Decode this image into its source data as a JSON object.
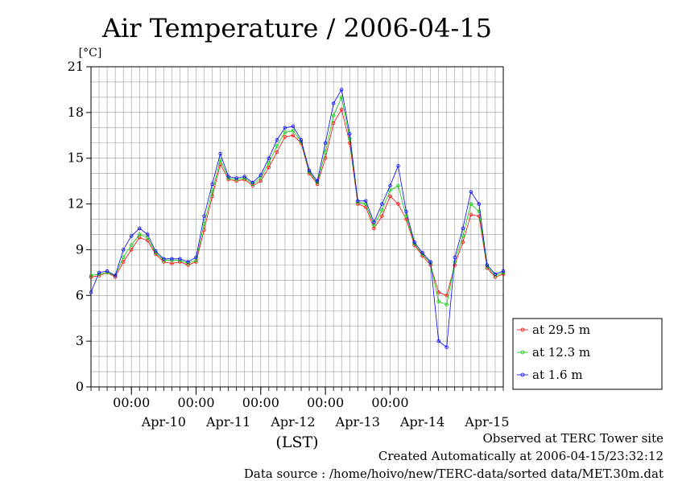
{
  "chart_data": {
    "type": "line",
    "title": "Air Temperature / 2006-04-15",
    "yunit": "[°C]",
    "xlabel": "(LST)",
    "ylim": [
      0,
      21
    ],
    "yticks": [
      0,
      3,
      6,
      9,
      12,
      15,
      18,
      21
    ],
    "xlim": [
      "2006-04-09 09:00",
      "2006-04-15 18:00"
    ],
    "x_time_ticks": [
      {
        "x": "2006-04-10 00:00",
        "label": "00:00"
      },
      {
        "x": "2006-04-11 00:00",
        "label": "00:00"
      },
      {
        "x": "2006-04-12 00:00",
        "label": "00:00"
      },
      {
        "x": "2006-04-13 00:00",
        "label": "00:00"
      },
      {
        "x": "2006-04-14 00:00",
        "label": "00:00"
      }
    ],
    "x_date_ticks": [
      {
        "x": "2006-04-10 12:00",
        "label": "Apr-10"
      },
      {
        "x": "2006-04-11 12:00",
        "label": "Apr-11"
      },
      {
        "x": "2006-04-12 12:00",
        "label": "Apr-12"
      },
      {
        "x": "2006-04-13 12:00",
        "label": "Apr-13"
      },
      {
        "x": "2006-04-14 12:00",
        "label": "Apr-14"
      },
      {
        "x": "2006-04-15 12:00",
        "label": "Apr-15"
      }
    ],
    "grid": true,
    "legend_position": "bottom-right outside plot",
    "x": [
      "2006-04-09 09:00",
      "2006-04-09 12:00",
      "2006-04-09 15:00",
      "2006-04-09 18:00",
      "2006-04-09 21:00",
      "2006-04-10 00:00",
      "2006-04-10 03:00",
      "2006-04-10 06:00",
      "2006-04-10 09:00",
      "2006-04-10 12:00",
      "2006-04-10 15:00",
      "2006-04-10 18:00",
      "2006-04-10 21:00",
      "2006-04-11 00:00",
      "2006-04-11 03:00",
      "2006-04-11 06:00",
      "2006-04-11 09:00",
      "2006-04-11 12:00",
      "2006-04-11 15:00",
      "2006-04-11 18:00",
      "2006-04-11 21:00",
      "2006-04-12 00:00",
      "2006-04-12 03:00",
      "2006-04-12 06:00",
      "2006-04-12 09:00",
      "2006-04-12 12:00",
      "2006-04-12 15:00",
      "2006-04-12 18:00",
      "2006-04-12 21:00",
      "2006-04-13 00:00",
      "2006-04-13 03:00",
      "2006-04-13 06:00",
      "2006-04-13 09:00",
      "2006-04-13 12:00",
      "2006-04-13 15:00",
      "2006-04-13 18:00",
      "2006-04-13 21:00",
      "2006-04-14 00:00",
      "2006-04-14 03:00",
      "2006-04-14 06:00",
      "2006-04-14 09:00",
      "2006-04-14 12:00",
      "2006-04-14 15:00",
      "2006-04-14 18:00",
      "2006-04-14 21:00",
      "2006-04-15 00:00",
      "2006-04-15 03:00",
      "2006-04-15 06:00",
      "2006-04-15 09:00",
      "2006-04-15 12:00",
      "2006-04-15 15:00",
      "2006-04-15 18:00"
    ],
    "series": [
      {
        "name": "at 29.5 m",
        "color": "#ff0000",
        "values": [
          7.2,
          7.3,
          7.5,
          7.2,
          8.2,
          9.0,
          9.8,
          9.6,
          8.7,
          8.2,
          8.1,
          8.2,
          8.0,
          8.2,
          10.3,
          12.5,
          14.6,
          13.6,
          13.5,
          13.6,
          13.2,
          13.5,
          14.4,
          15.4,
          16.4,
          16.5,
          16.0,
          14.0,
          13.3,
          15.0,
          17.3,
          18.2,
          16.0,
          12.0,
          11.8,
          10.4,
          11.2,
          12.5,
          12.0,
          11.0,
          9.3,
          8.6,
          8.0,
          6.2,
          6.0,
          8.0,
          9.5,
          11.3,
          11.2,
          7.8,
          7.2,
          7.4
        ]
      },
      {
        "name": "at 12.3 m",
        "color": "#00cc00",
        "values": [
          7.3,
          7.4,
          7.5,
          7.3,
          8.5,
          9.3,
          10.0,
          9.8,
          8.8,
          8.3,
          8.3,
          8.3,
          8.1,
          8.3,
          10.7,
          12.8,
          14.9,
          13.7,
          13.6,
          13.7,
          13.3,
          13.7,
          14.7,
          15.8,
          16.7,
          16.8,
          16.1,
          14.1,
          13.4,
          15.4,
          17.8,
          19.0,
          16.3,
          12.1,
          12.0,
          10.6,
          11.6,
          12.9,
          13.2,
          11.2,
          9.4,
          8.7,
          8.1,
          5.6,
          5.4,
          8.2,
          9.9,
          12.0,
          11.5,
          7.9,
          7.3,
          7.5
        ]
      },
      {
        "name": "at 1.6 m",
        "color": "#0000ff",
        "values": [
          6.2,
          7.5,
          7.6,
          7.3,
          9.0,
          9.9,
          10.4,
          10.0,
          8.9,
          8.4,
          8.4,
          8.4,
          8.2,
          8.5,
          11.2,
          13.3,
          15.3,
          13.8,
          13.7,
          13.8,
          13.4,
          13.9,
          15.0,
          16.2,
          17.0,
          17.1,
          16.2,
          14.2,
          13.5,
          16.0,
          18.6,
          19.5,
          16.6,
          12.2,
          12.2,
          10.8,
          12.0,
          13.2,
          14.5,
          11.5,
          9.5,
          8.8,
          8.2,
          3.0,
          2.6,
          8.5,
          10.4,
          12.8,
          12.0,
          8.0,
          7.4,
          7.6
        ]
      }
    ],
    "footer": {
      "line1": "Observed at TERC Tower site",
      "line2": "Created Automatically at 2006-04-15/23:32:12",
      "line3": "Data source : /home/hoivo/new/TERC-data/sorted  data/MET.30m.dat"
    }
  }
}
